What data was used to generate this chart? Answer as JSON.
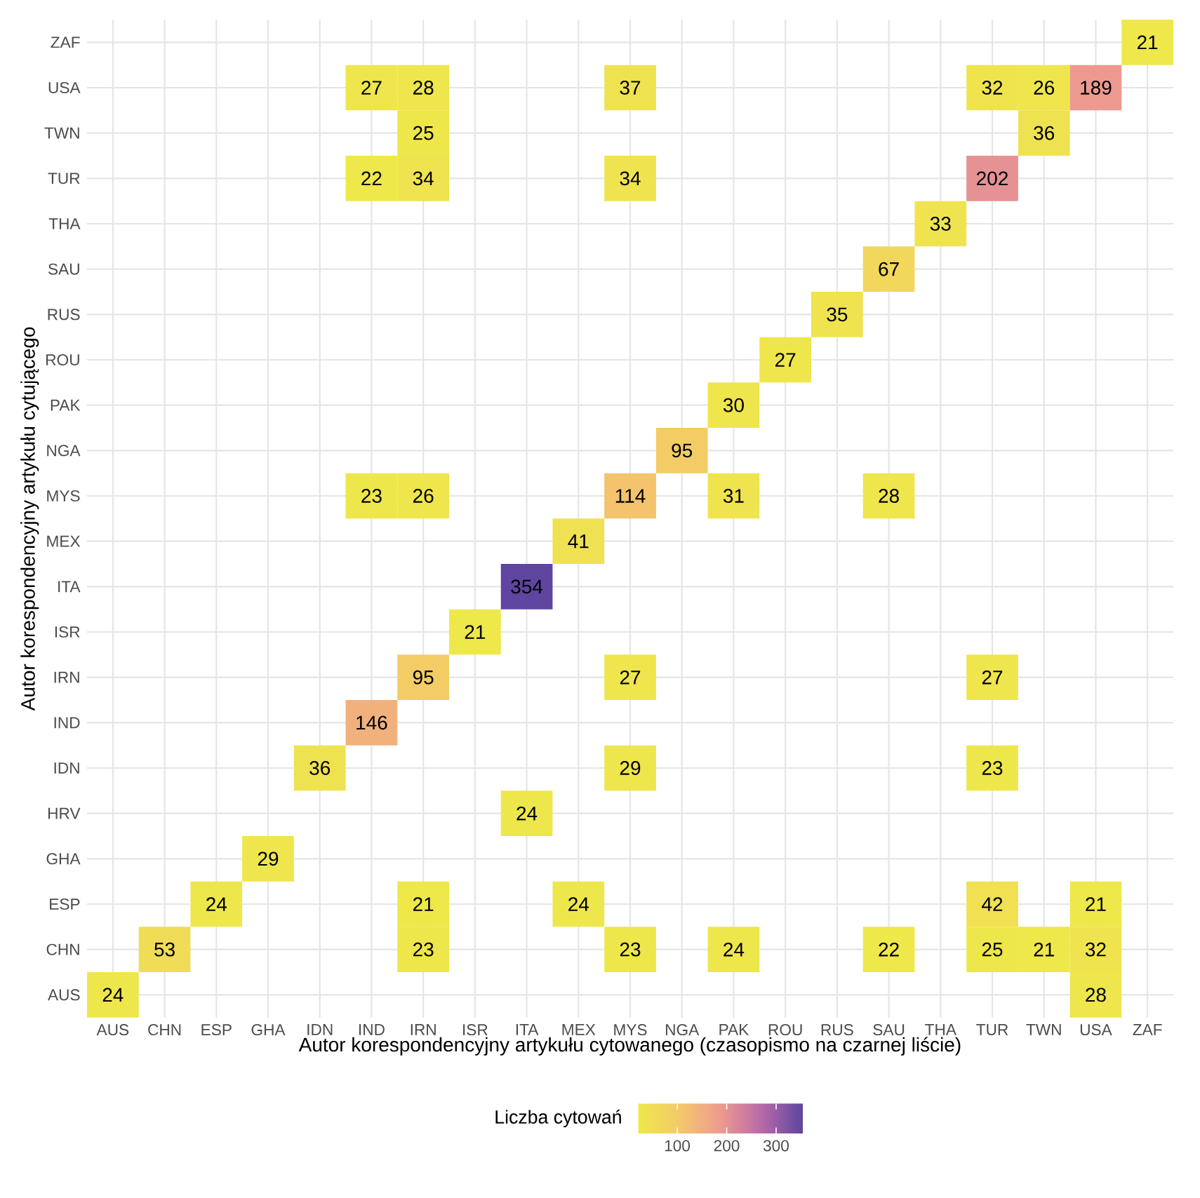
{
  "chart_data": {
    "type": "heatmap",
    "xlabel": "Autor korespondencyjny artykułu cytowanego (czasopismo na czarnej liście)",
    "ylabel": "Autor korespondencyjny artykułu cytującego",
    "clabel": "Liczba cytowań",
    "categories": [
      "AUS",
      "CHN",
      "ESP",
      "GHA",
      "IDN",
      "IND",
      "IRN",
      "ISR",
      "ITA",
      "MEX",
      "MYS",
      "NGA",
      "PAK",
      "ROU",
      "RUS",
      "SAU",
      "THA",
      "TUR",
      "TWN",
      "USA",
      "ZAF"
    ],
    "y_categories": [
      "ZAF",
      "USA",
      "TWN",
      "TUR",
      "THA",
      "SAU",
      "RUS",
      "ROU",
      "PAK",
      "NGA",
      "MYS",
      "MEX",
      "ITA",
      "ISR",
      "IRN",
      "IND",
      "IDN",
      "HRV",
      "GHA",
      "ESP",
      "CHN",
      "AUS"
    ],
    "cells": [
      [
        null,
        null,
        null,
        null,
        null,
        null,
        null,
        null,
        null,
        null,
        null,
        null,
        null,
        null,
        null,
        null,
        null,
        null,
        null,
        null,
        21
      ],
      [
        null,
        null,
        null,
        null,
        null,
        27,
        28,
        null,
        null,
        null,
        37,
        null,
        null,
        null,
        null,
        null,
        null,
        32,
        26,
        189,
        null
      ],
      [
        null,
        null,
        null,
        null,
        null,
        null,
        25,
        null,
        null,
        null,
        null,
        null,
        null,
        null,
        null,
        null,
        null,
        null,
        36,
        null,
        null
      ],
      [
        null,
        null,
        null,
        null,
        null,
        22,
        34,
        null,
        null,
        null,
        34,
        null,
        null,
        null,
        null,
        null,
        null,
        202,
        null,
        null,
        null
      ],
      [
        null,
        null,
        null,
        null,
        null,
        null,
        null,
        null,
        null,
        null,
        null,
        null,
        null,
        null,
        null,
        null,
        33,
        null,
        null,
        null,
        null
      ],
      [
        null,
        null,
        null,
        null,
        null,
        null,
        null,
        null,
        null,
        null,
        null,
        null,
        null,
        null,
        null,
        67,
        null,
        null,
        null,
        null,
        null
      ],
      [
        null,
        null,
        null,
        null,
        null,
        null,
        null,
        null,
        null,
        null,
        null,
        null,
        null,
        null,
        35,
        null,
        null,
        null,
        null,
        null,
        null
      ],
      [
        null,
        null,
        null,
        null,
        null,
        null,
        null,
        null,
        null,
        null,
        null,
        null,
        null,
        27,
        null,
        null,
        null,
        null,
        null,
        null,
        null
      ],
      [
        null,
        null,
        null,
        null,
        null,
        null,
        null,
        null,
        null,
        null,
        null,
        null,
        30,
        null,
        null,
        null,
        null,
        null,
        null,
        null,
        null
      ],
      [
        null,
        null,
        null,
        null,
        null,
        null,
        null,
        null,
        null,
        null,
        null,
        95,
        null,
        null,
        null,
        null,
        null,
        null,
        null,
        null,
        null
      ],
      [
        null,
        null,
        null,
        null,
        null,
        23,
        26,
        null,
        null,
        null,
        114,
        null,
        31,
        null,
        null,
        28,
        null,
        null,
        null,
        null,
        null
      ],
      [
        null,
        null,
        null,
        null,
        null,
        null,
        null,
        null,
        null,
        41,
        null,
        null,
        null,
        null,
        null,
        null,
        null,
        null,
        null,
        null,
        null
      ],
      [
        null,
        null,
        null,
        null,
        null,
        null,
        null,
        null,
        354,
        null,
        null,
        null,
        null,
        null,
        null,
        null,
        null,
        null,
        null,
        null,
        null
      ],
      [
        null,
        null,
        null,
        null,
        null,
        null,
        null,
        21,
        null,
        null,
        null,
        null,
        null,
        null,
        null,
        null,
        null,
        null,
        null,
        null,
        null
      ],
      [
        null,
        null,
        null,
        null,
        null,
        null,
        95,
        null,
        null,
        null,
        27,
        null,
        null,
        null,
        null,
        null,
        null,
        27,
        null,
        null,
        null
      ],
      [
        null,
        null,
        null,
        null,
        null,
        146,
        null,
        null,
        null,
        null,
        null,
        null,
        null,
        null,
        null,
        null,
        null,
        null,
        null,
        null,
        null
      ],
      [
        null,
        null,
        null,
        null,
        36,
        null,
        null,
        null,
        null,
        null,
        29,
        null,
        null,
        null,
        null,
        null,
        null,
        23,
        null,
        null,
        null
      ],
      [
        null,
        null,
        null,
        null,
        null,
        null,
        null,
        null,
        24,
        null,
        null,
        null,
        null,
        null,
        null,
        null,
        null,
        null,
        null,
        null,
        null
      ],
      [
        null,
        null,
        null,
        29,
        null,
        null,
        null,
        null,
        null,
        null,
        null,
        null,
        null,
        null,
        null,
        null,
        null,
        null,
        null,
        null,
        null
      ],
      [
        null,
        null,
        24,
        null,
        null,
        null,
        21,
        null,
        null,
        24,
        null,
        null,
        null,
        null,
        null,
        null,
        null,
        42,
        null,
        21,
        null
      ],
      [
        null,
        53,
        null,
        null,
        null,
        null,
        23,
        null,
        null,
        null,
        23,
        null,
        24,
        null,
        null,
        22,
        null,
        25,
        21,
        32,
        null
      ],
      [
        24,
        null,
        null,
        null,
        null,
        null,
        null,
        null,
        null,
        null,
        null,
        null,
        null,
        null,
        null,
        null,
        null,
        null,
        null,
        28,
        null
      ]
    ],
    "clim": [
      21,
      354
    ],
    "cticks": [
      100,
      200,
      300
    ],
    "grid": true,
    "data_labels": true
  }
}
